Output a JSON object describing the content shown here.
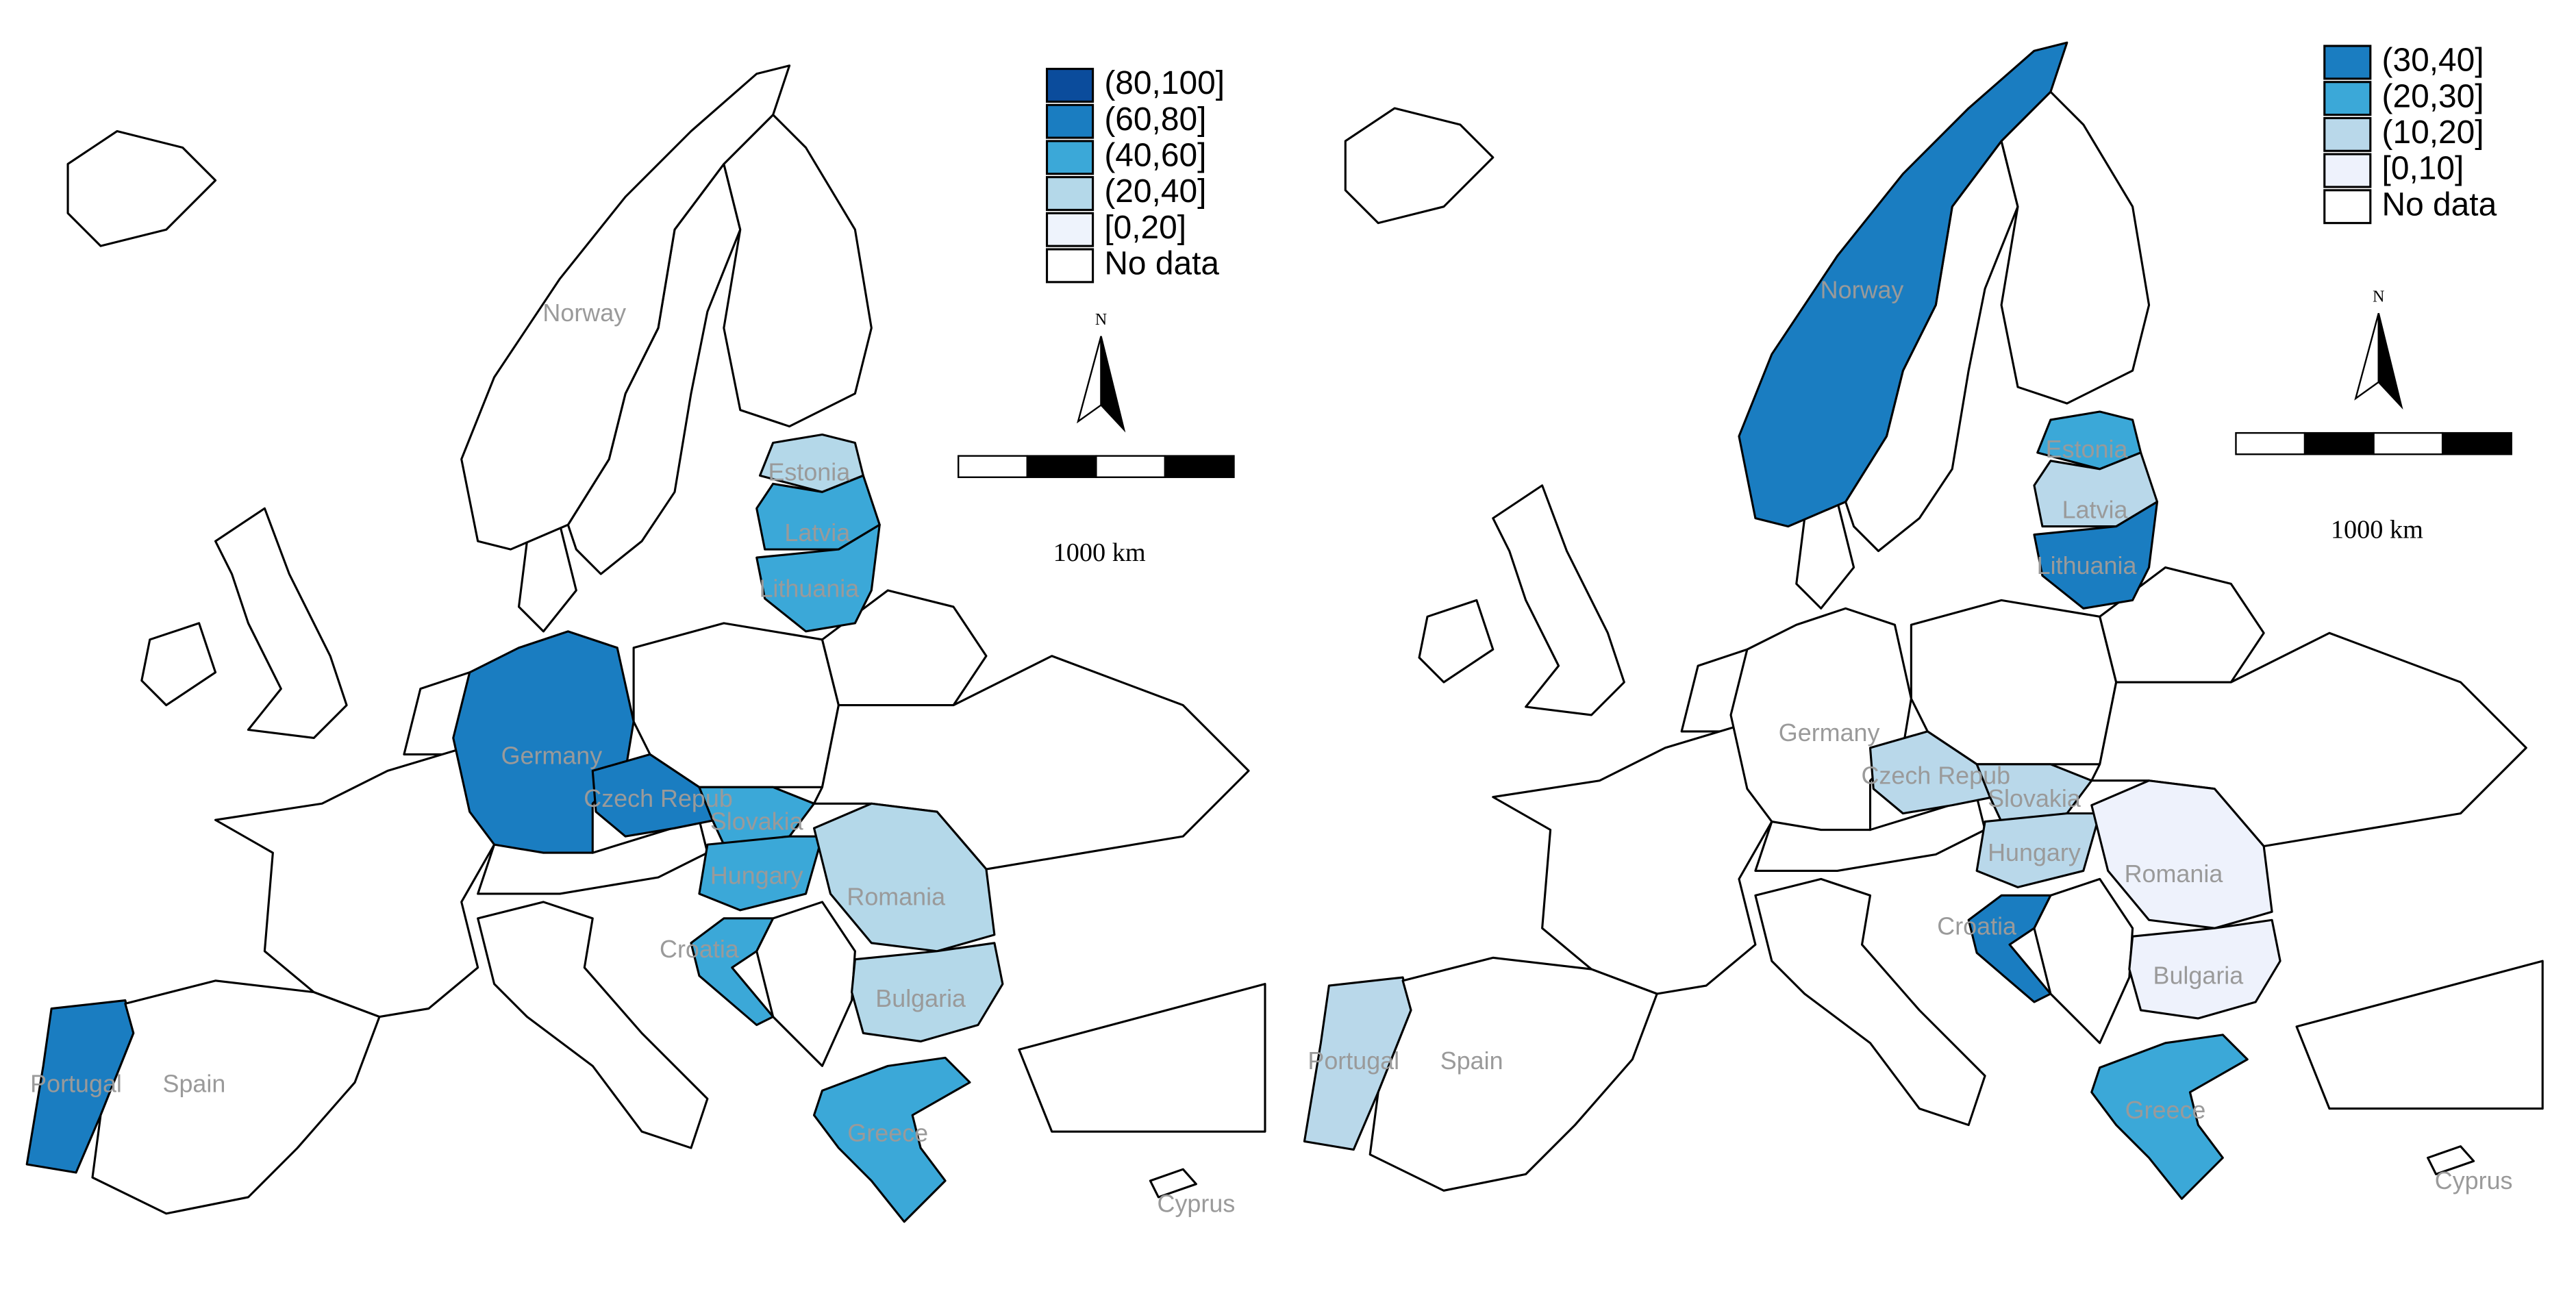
{
  "maps": [
    {
      "legend": [
        {
          "label": "(80,100]",
          "color": "#0b4c9c"
        },
        {
          "label": "(60,80]",
          "color": "#1a7dc1"
        },
        {
          "label": "(40,60]",
          "color": "#3ba8d8"
        },
        {
          "label": "(20,40]",
          "color": "#b4d8e9"
        },
        {
          "label": "[0,20]",
          "color": "#eef3fc"
        },
        {
          "label": "No data",
          "color": "#ffffff"
        }
      ],
      "countries": [
        {
          "label": "Norway",
          "color": "#ffffff"
        },
        {
          "label": "Estonia",
          "color": "#b4d8e9"
        },
        {
          "label": "Latvia",
          "color": "#3ba8d8"
        },
        {
          "label": "Lithuania",
          "color": "#3ba8d8"
        },
        {
          "label": "Germany",
          "color": "#1a7dc1"
        },
        {
          "label": "Czech Repub",
          "color": "#1a7dc1"
        },
        {
          "label": "Slovakia",
          "color": "#3ba8d8"
        },
        {
          "label": "Hungary",
          "color": "#3ba8d8"
        },
        {
          "label": "Romania",
          "color": "#b4d8e9"
        },
        {
          "label": "Croatia",
          "color": "#3ba8d8"
        },
        {
          "label": "Bulgaria",
          "color": "#b4d8e9"
        },
        {
          "label": "Greece",
          "color": "#3ba8d8"
        },
        {
          "label": "Portugal",
          "color": "#1a7dc1"
        },
        {
          "label": "Spain",
          "color": "#ffffff"
        },
        {
          "label": "Cyprus",
          "color": "#ffffff"
        }
      ],
      "north": "N",
      "scale_label": "1000 km"
    },
    {
      "legend": [
        {
          "label": "(30,40]",
          "color": "#1a7dc1"
        },
        {
          "label": "(20,30]",
          "color": "#3ba8d8"
        },
        {
          "label": "(10,20]",
          "color": "#b9d8ea"
        },
        {
          "label": "[0,10]",
          "color": "#eef2fc"
        },
        {
          "label": "No data",
          "color": "#ffffff"
        }
      ],
      "countries": [
        {
          "label": "Norway",
          "color": "#1a7dc1"
        },
        {
          "label": "Estonia",
          "color": "#3ba8d8"
        },
        {
          "label": "Latvia",
          "color": "#b9d8ea"
        },
        {
          "label": "Lithuania",
          "color": "#1a7dc1"
        },
        {
          "label": "Germany",
          "color": "#ffffff"
        },
        {
          "label": "Czech Repub",
          "color": "#b9d8ea"
        },
        {
          "label": "Slovakia",
          "color": "#b9d8ea"
        },
        {
          "label": "Hungary",
          "color": "#b9d8ea"
        },
        {
          "label": "Romania",
          "color": "#eef2fc"
        },
        {
          "label": "Croatia",
          "color": "#1a7dc1"
        },
        {
          "label": "Bulgaria",
          "color": "#eef2fc"
        },
        {
          "label": "Greece",
          "color": "#3ba8d8"
        },
        {
          "label": "Portugal",
          "color": "#b9d8ea"
        },
        {
          "label": "Spain",
          "color": "#ffffff"
        },
        {
          "label": "Cyprus",
          "color": "#ffffff"
        }
      ],
      "north": "N",
      "scale_label": "1000 km"
    }
  ]
}
